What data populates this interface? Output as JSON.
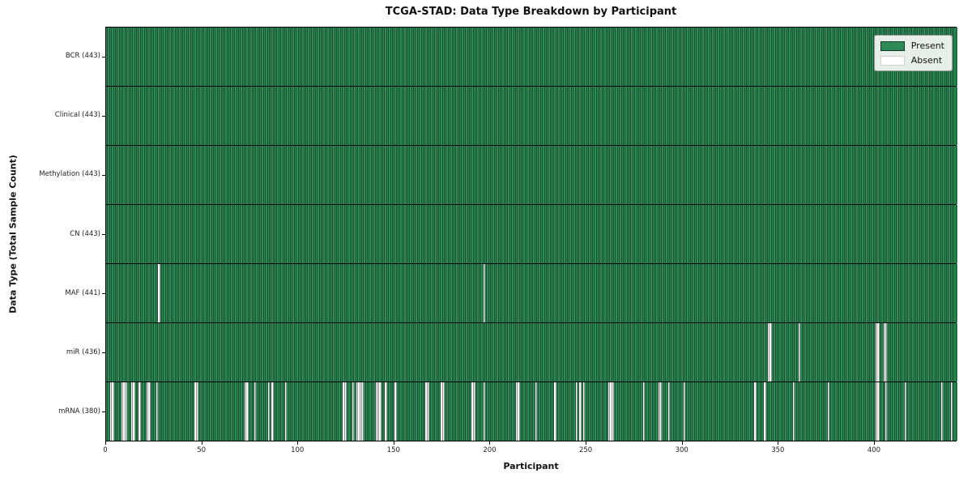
{
  "figure": {
    "title": "TCGA-STAD: Data Type Breakdown by Participant",
    "xlabel": "Participant",
    "ylabel": "Data Type (Total Sample Count)"
  },
  "chart_data": {
    "type": "heatmap",
    "title": "TCGA-STAD: Data Type Breakdown by Participant",
    "xlabel": "Participant",
    "ylabel": "Data Type (Total Sample Count)",
    "x_range": [
      0,
      443
    ],
    "x_ticks": [
      0,
      50,
      100,
      150,
      200,
      250,
      300,
      350,
      400
    ],
    "n_participants": 443,
    "present_color": "#2e8b57",
    "absent_color": "#ffffff",
    "grid": "row-separators",
    "legend_position": "upper right",
    "legend_items": [
      {
        "label": "Present",
        "color": "#2e8b57"
      },
      {
        "label": "Absent",
        "color": "#ffffff"
      }
    ],
    "rows": [
      {
        "label": "BCR",
        "total": 443,
        "tick_label": "BCR (443)",
        "absent": []
      },
      {
        "label": "Clinical",
        "total": 443,
        "tick_label": "Clinical (443)",
        "absent": []
      },
      {
        "label": "Methylation",
        "total": 443,
        "tick_label": "Methylation (443)",
        "absent": []
      },
      {
        "label": "CN",
        "total": 443,
        "tick_label": "CN (443)",
        "absent": []
      },
      {
        "label": "MAF",
        "total": 441,
        "tick_label": "MAF (441)",
        "absent": [
          27,
          196
        ]
      },
      {
        "label": "miR",
        "total": 436,
        "tick_label": "miR (436)",
        "absent": [
          344,
          345,
          360,
          400,
          401,
          404,
          405
        ]
      },
      {
        "label": "mRNA",
        "total": 380,
        "tick_label": "mRNA (380)",
        "absent": [
          2,
          3,
          8,
          9,
          10,
          13,
          14,
          17,
          21,
          22,
          26,
          46,
          47,
          72,
          73,
          77,
          84,
          86,
          93,
          123,
          124,
          128,
          130,
          131,
          132,
          133,
          140,
          141,
          142,
          145,
          150,
          166,
          167,
          174,
          175,
          190,
          191,
          196,
          213,
          214,
          223,
          233,
          244,
          246,
          248,
          261,
          262,
          263,
          279,
          287,
          288,
          292,
          300,
          337,
          342,
          357,
          375,
          400,
          401,
          405,
          415,
          434,
          439
        ]
      }
    ]
  }
}
